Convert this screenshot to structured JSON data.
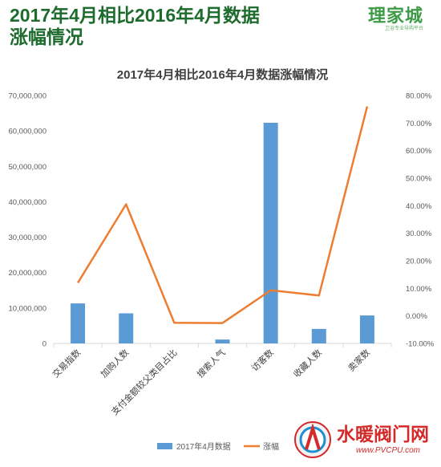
{
  "header": {
    "title": "2017年4月相比2016年4月数据涨幅情况",
    "brand_name": "理家城",
    "brand_tagline": "卫浴专业导购平台"
  },
  "chart_data": {
    "type": "bar",
    "title": "2017年4月相比2016年4月数据涨幅情况",
    "categories": [
      "交易指数",
      "加购人数",
      "支付金额较父类目占比",
      "搜索人气",
      "访客数",
      "收藏人数",
      "卖家数"
    ],
    "series": [
      {
        "name": "2017年4月数据",
        "type": "bar",
        "axis": "left",
        "color": "#5b9bd5",
        "values": [
          11300000,
          8500000,
          0,
          1100000,
          62300000,
          4100000,
          7900000
        ]
      },
      {
        "name": "涨幅",
        "type": "line",
        "axis": "right",
        "color": "#ed7d31",
        "values": [
          0.12,
          0.405,
          -0.025,
          -0.026,
          0.093,
          0.074,
          0.76
        ]
      }
    ],
    "left_axis": {
      "min": 0,
      "max": 70000000,
      "ticks": [
        "0",
        "10,000,000",
        "20,000,000",
        "30,000,000",
        "40,000,000",
        "50,000,000",
        "60,000,000",
        "70,000,000"
      ]
    },
    "right_axis": {
      "min": -0.1,
      "max": 0.8,
      "ticks": [
        "-10.00%",
        "0.00%",
        "10.00%",
        "20.00%",
        "30.00%",
        "40.00%",
        "50.00%",
        "60.00%",
        "70.00%",
        "80.00%"
      ]
    },
    "legend_position": "bottom",
    "grid": false
  },
  "watermark": {
    "text": "水暖阀门网",
    "url": "www.PVCPU.com"
  },
  "colors": {
    "title": "#1e6b2e",
    "bar": "#5b9bd5",
    "line": "#ed7d31"
  }
}
